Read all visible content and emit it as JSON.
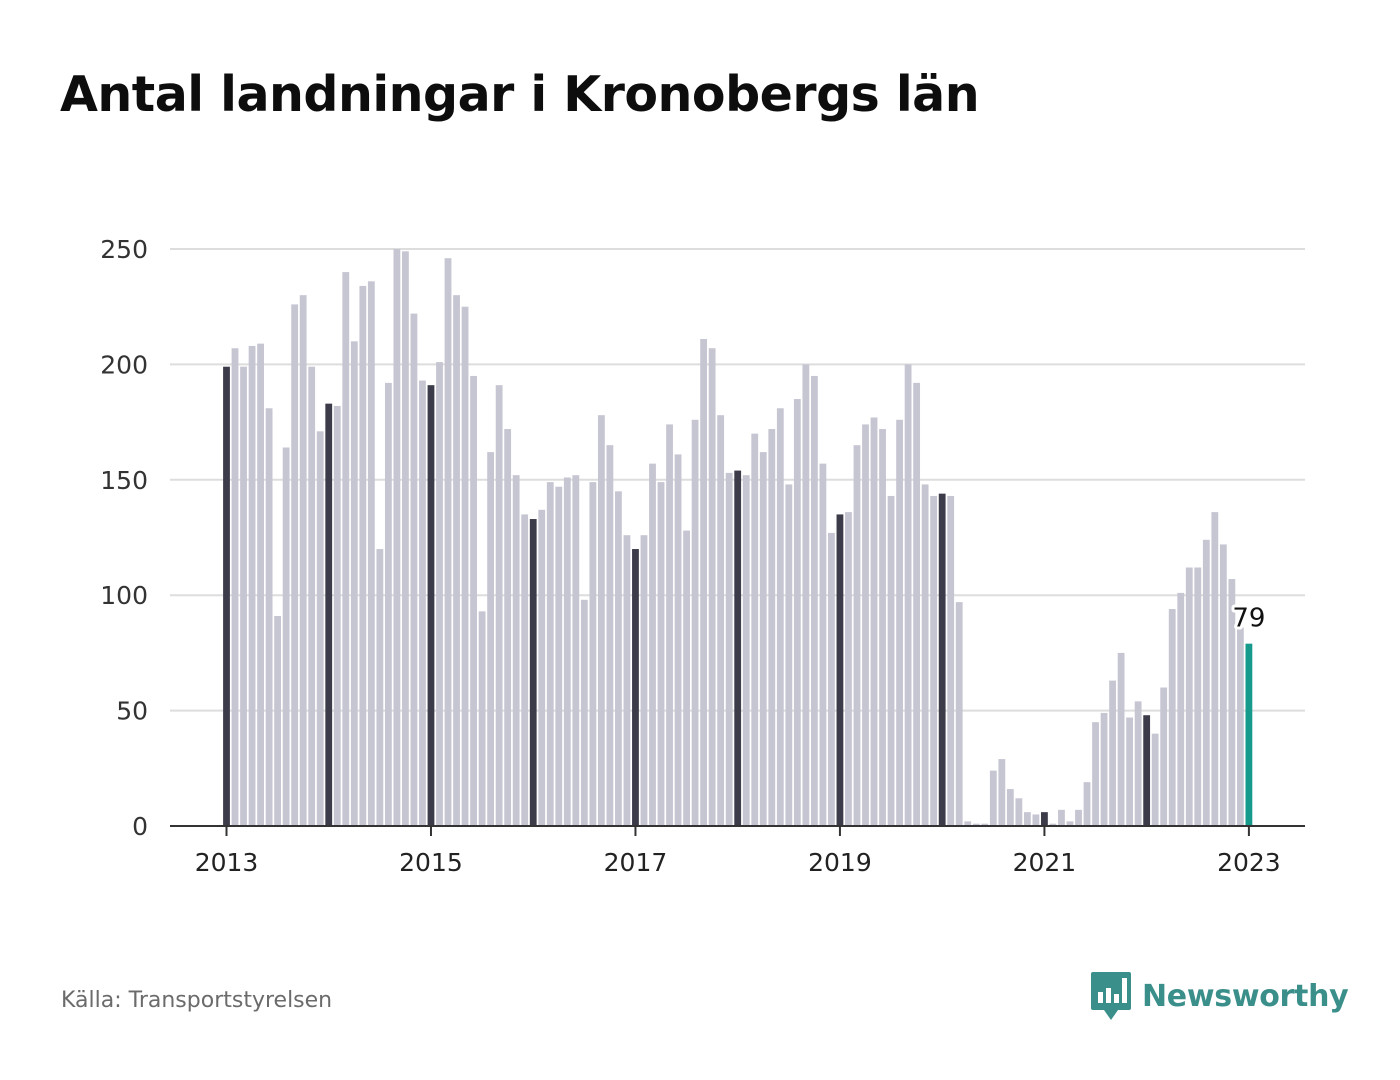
{
  "title": "Antal landningar i Kronobergs län",
  "source": "Källa: Transportstyrelsen",
  "brand": {
    "name": "Newsworthy",
    "icon": "newsworthy-logo-icon"
  },
  "colors": {
    "bar": "#c6c5d2",
    "january_bar": "#3c3b4a",
    "highlight": "#159a8c",
    "grid": "#dddddd",
    "axis": "#333333",
    "brand": "#3a8f8a"
  },
  "chart_data": {
    "type": "bar",
    "title": "Antal landningar i Kronobergs län",
    "xlabel": "",
    "ylabel": "",
    "ylim": [
      0,
      250
    ],
    "yticks": [
      0,
      50,
      100,
      150,
      200,
      250
    ],
    "xtick_labels": [
      "2013",
      "2015",
      "2017",
      "2019",
      "2021",
      "2023"
    ],
    "grid": true,
    "start": "2013-01",
    "frequency": "monthly",
    "values": [
      199,
      207,
      199,
      208,
      209,
      181,
      91,
      164,
      226,
      230,
      199,
      171,
      183,
      182,
      240,
      210,
      234,
      236,
      120,
      192,
      250,
      249,
      222,
      193,
      191,
      201,
      246,
      230,
      225,
      195,
      93,
      162,
      191,
      172,
      152,
      135,
      133,
      137,
      149,
      147,
      151,
      152,
      98,
      149,
      178,
      165,
      145,
      126,
      120,
      126,
      157,
      149,
      174,
      161,
      128,
      176,
      211,
      207,
      178,
      153,
      154,
      152,
      170,
      162,
      172,
      181,
      148,
      185,
      200,
      195,
      157,
      127,
      135,
      136,
      165,
      174,
      177,
      172,
      143,
      176,
      200,
      192,
      148,
      143,
      144,
      143,
      97,
      2,
      1,
      1,
      24,
      29,
      16,
      12,
      6,
      5,
      6,
      1,
      7,
      2,
      7,
      19,
      45,
      49,
      63,
      75,
      47,
      54,
      48,
      40,
      60,
      94,
      101,
      112,
      112,
      124,
      136,
      122,
      107,
      86,
      79
    ],
    "highlight_label": "79"
  }
}
